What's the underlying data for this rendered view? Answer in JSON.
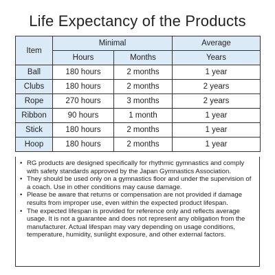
{
  "title": "Life Expectancy of the Products",
  "table": {
    "header": {
      "item": "Item",
      "minimal": "Minimal",
      "average": "Average",
      "hours": "Hours",
      "months": "Months",
      "years": "Years"
    },
    "rows": [
      [
        "Ball",
        "180 hours",
        "2 months",
        "1 year"
      ],
      [
        "Clubs",
        "180 hours",
        "2 months",
        "2 years"
      ],
      [
        "Rope",
        "270 hours",
        "3 months",
        "2 years"
      ],
      [
        "Ribbon",
        "90 hours",
        "1 month",
        "1 year"
      ],
      [
        "Stick",
        "180 hours",
        "2 months",
        "1 year"
      ],
      [
        "Hoop",
        "180 hours",
        "2 months",
        "1 year"
      ]
    ]
  },
  "notes": [
    "RG products are designed specifically for rhythmic gymnastics and comply with safety standards approved by the Japan Gymnastics Association.",
    "They should be used only on a gymnastics floor and under the supervision of a coach. Use in other conditions may cause damage.",
    "Please be aware that returns or compensation are not provided if damage results from improper use, even within the expected product lifespan.",
    "The expected lifespan is provided for reference only and reflects average usage. It is not a guarantee and does not represent any obligation from the manufacturer. Actual lifespan may vary depending on usage conditions, temperature, humidity, sunlight exposure, and other external factors."
  ]
}
